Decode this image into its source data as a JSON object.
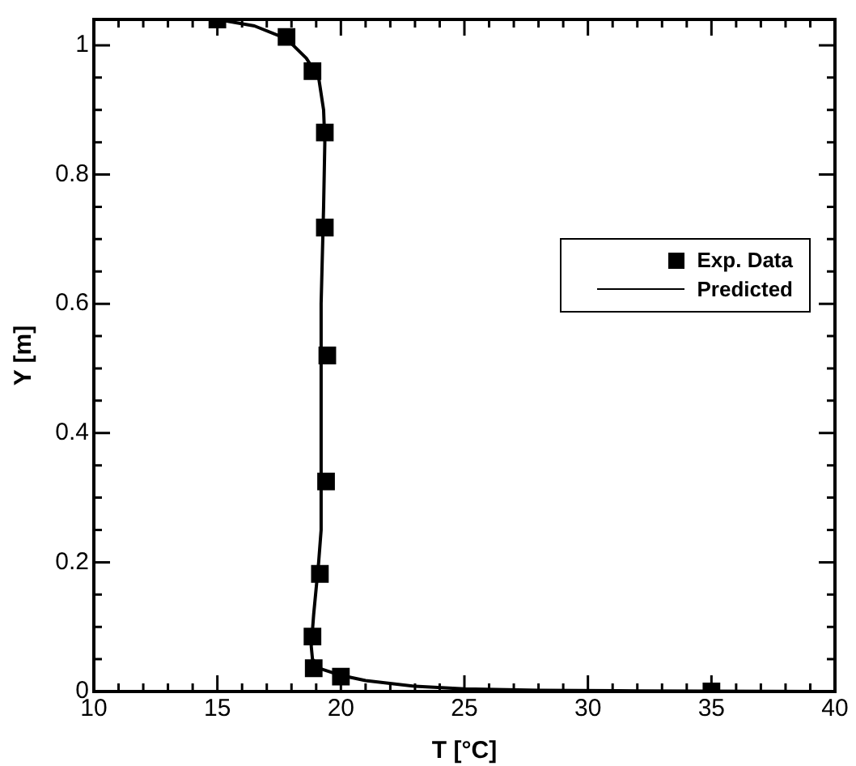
{
  "chart_data": {
    "type": "scatter",
    "xlabel": "T [°C]",
    "ylabel": "Y [m]",
    "xlim": [
      10,
      40
    ],
    "xticks": [
      10,
      15,
      20,
      25,
      30,
      35,
      40
    ],
    "ylim": [
      0,
      1.04
    ],
    "yticks": [
      0,
      0.2,
      0.4,
      0.6,
      0.8,
      1
    ],
    "grid": false,
    "legend": "right",
    "series": [
      {
        "name": "Exp. Data",
        "color": "#000000",
        "marker": "square",
        "x": [
          15,
          17.8,
          18.85,
          19.35,
          19.35,
          19.45,
          19.4,
          19.15,
          18.85,
          18.9,
          20,
          35
        ],
        "values": [
          1.04,
          1.013,
          0.96,
          0.865,
          0.718,
          0.52,
          0.325,
          0.182,
          0.085,
          0.036,
          0.023,
          0
        ]
      },
      {
        "name": "Predicted",
        "type": "line",
        "color": "#000000",
        "marker": "none",
        "line_style": "solid",
        "x": [
          15,
          16.5,
          17.8,
          18.6,
          19.1,
          19.3,
          19.35,
          19.3,
          19.2,
          19.2,
          19.1,
          18.9,
          18.8,
          18.85,
          19.2,
          20,
          21,
          23,
          25,
          28,
          32,
          40
        ],
        "values": [
          1.04,
          1.03,
          1.01,
          0.98,
          0.95,
          0.9,
          0.85,
          0.75,
          0.6,
          0.25,
          0.2,
          0.12,
          0.07,
          0.05,
          0.035,
          0.025,
          0.017,
          0.008,
          0.004,
          0.002,
          0.001,
          0
        ]
      }
    ]
  }
}
